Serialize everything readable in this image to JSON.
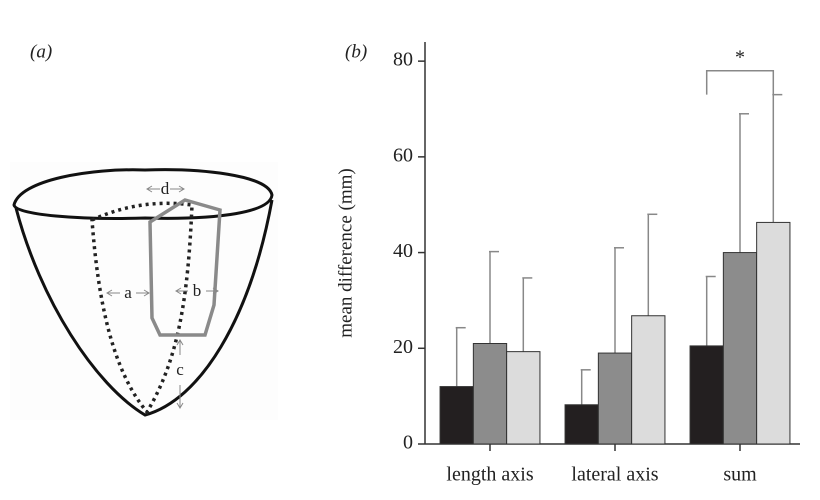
{
  "panel_a": {
    "label": "(a)",
    "arrow_labels": [
      "a",
      "b",
      "c",
      "d"
    ]
  },
  "chart_data": {
    "type": "bar",
    "panel_label": "(b)",
    "ylabel": "mean difference (mm)",
    "categories": [
      "length axis",
      "lateral axis",
      "sum"
    ],
    "series": [
      {
        "color": "#231f20",
        "values": [
          12,
          8.2,
          20.5
        ],
        "errors": [
          12.3,
          7.3,
          14.5
        ]
      },
      {
        "color": "#8c8c8c",
        "values": [
          21,
          19,
          40
        ],
        "errors": [
          19.2,
          22,
          29
        ]
      },
      {
        "color": "#dcdcdc",
        "values": [
          19.3,
          26.8,
          46.3
        ],
        "errors": [
          15.4,
          21.2,
          26.7
        ]
      }
    ],
    "annotation": "*",
    "ylim": [
      0,
      84
    ],
    "yticks": [
      0,
      20,
      40,
      60,
      80
    ],
    "grid": false
  }
}
